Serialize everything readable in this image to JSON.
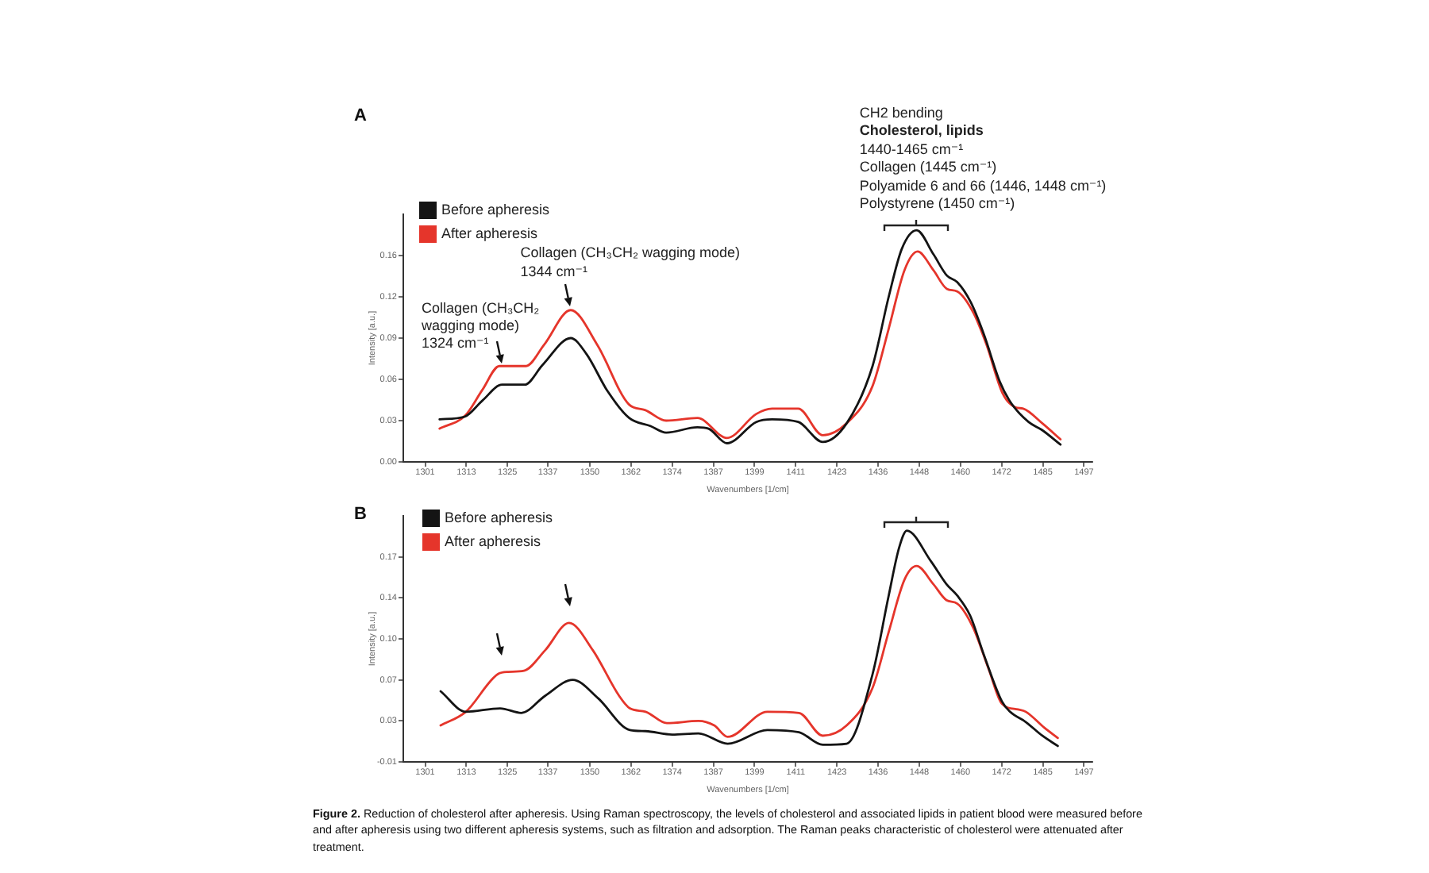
{
  "chart_data": [
    {
      "type": "line",
      "title": "A",
      "xlabel": "Wavenumbers [1/cm]",
      "ylabel": "Intensity [a.u.]",
      "xlim": [
        1294.5,
        1499.5
      ],
      "xticks": [
        1301,
        {
          "value": 1313.25,
          "label": "1313"
        },
        {
          "value": 1325.5,
          "label": "1325"
        },
        {
          "value": 1337.5,
          "label": "1337"
        },
        1350,
        {
          "value": 1362.25,
          "label": "1362"
        },
        {
          "value": 1374.5,
          "label": "1374"
        },
        {
          "value": 1386.75,
          "label": "1387"
        },
        1399,
        {
          "value": 1411.25,
          "label": "1411"
        },
        {
          "value": 1423.5,
          "label": "1423"
        },
        {
          "value": 1435.75,
          "label": "1436"
        },
        1448,
        {
          "value": 1460.25,
          "label": "1460"
        },
        {
          "value": 1472.5,
          "label": "1472"
        },
        {
          "value": 1484.75,
          "label": "1485"
        },
        1497
      ],
      "ylim": [
        0,
        0.186
      ],
      "yticks": [
        {
          "value": 0,
          "label": "0.00"
        },
        {
          "value": 0.031,
          "label": "0.03"
        },
        {
          "value": 0.062,
          "label": "0.06"
        },
        {
          "value": 0.093,
          "label": "0.09"
        },
        {
          "value": 0.124,
          "label": "0.12"
        },
        {
          "value": 0.155,
          "label": "0.16"
        }
      ],
      "grid": false,
      "legend": "top left",
      "marker": "none",
      "line_style": "solid",
      "series": [
        {
          "name": "Before apheresis",
          "color": "#141414",
          "x": [
            1305.3,
            1312.8,
            1318,
            1323.9,
            1330.6,
            1336,
            1344.3,
            1349,
            1355.3,
            1361.7,
            1368,
            1372.7,
            1382,
            1385.3,
            1390.8,
            1399.5,
            1404.2,
            1412,
            1419.3,
            1426.4,
            1434.1,
            1438.9,
            1442.8,
            1447.2,
            1452.2,
            1456.2,
            1459.3,
            1463.3,
            1467.2,
            1472,
            1475.1,
            1480.5,
            1484.5,
            1490
          ],
          "values": [
            0.032,
            0.034,
            0.046,
            0.058,
            0.058,
            0.073,
            0.093,
            0.081,
            0.053,
            0.033,
            0.027,
            0.022,
            0.026,
            0.025,
            0.014,
            0.03,
            0.032,
            0.03,
            0.015,
            0.029,
            0.072,
            0.124,
            0.16,
            0.174,
            0.156,
            0.14,
            0.135,
            0.12,
            0.096,
            0.06,
            0.045,
            0.03,
            0.024,
            0.013
          ]
        },
        {
          "name": "After apheresis",
          "color": "#e5352b",
          "x": [
            1305.3,
            1313,
            1318,
            1323.1,
            1331,
            1336.4,
            1344.3,
            1352.2,
            1361.7,
            1366.4,
            1372.7,
            1382,
            1390.8,
            1399.5,
            1404.2,
            1412,
            1419.3,
            1426.4,
            1434.1,
            1438.9,
            1443.6,
            1447.5,
            1452.2,
            1456.2,
            1459.3,
            1464.1,
            1468,
            1472.7,
            1476.6,
            1478.9,
            1484.6,
            1490
          ],
          "values": [
            0.025,
            0.035,
            0.054,
            0.072,
            0.072,
            0.088,
            0.114,
            0.088,
            0.043,
            0.039,
            0.031,
            0.033,
            0.018,
            0.036,
            0.04,
            0.04,
            0.02,
            0.029,
            0.057,
            0.1,
            0.144,
            0.158,
            0.144,
            0.13,
            0.128,
            0.112,
            0.088,
            0.052,
            0.041,
            0.04,
            0.029,
            0.017
          ]
        }
      ],
      "annotations": [
        {
          "text": "Collagen (CH₃CH₂\nwagging mode)\n1324 cm⁻¹",
          "x": 1324,
          "y": 0.072
        },
        {
          "text": "Collagen (CH₃CH₂ wagging mode)\n1344 cm⁻¹",
          "x": 1344,
          "y": 0.114
        },
        {
          "text": "CH2 bending\nCholesterol, lipids\n1440-1465 cm⁻¹\nCollagen (1445 cm⁻¹)\nPolyamide 6 and 66 (1446, 1448 cm⁻¹)\nPolystyrene (1450 cm⁻¹)",
          "x": 1447,
          "y": 0.174
        }
      ]
    },
    {
      "type": "line",
      "title": "B",
      "xlabel": "Wavenumbers [1/cm]",
      "ylabel": "Intensity [a.u.]",
      "xlim": [
        1294.5,
        1499.5
      ],
      "xticks": [
        1301,
        {
          "value": 1313.25,
          "label": "1313"
        },
        {
          "value": 1325.5,
          "label": "1325"
        },
        {
          "value": 1337.5,
          "label": "1337"
        },
        1350,
        {
          "value": 1362.25,
          "label": "1362"
        },
        {
          "value": 1374.5,
          "label": "1374"
        },
        {
          "value": 1386.75,
          "label": "1387"
        },
        1399,
        {
          "value": 1411.25,
          "label": "1411"
        },
        {
          "value": 1423.5,
          "label": "1423"
        },
        {
          "value": 1435.75,
          "label": "1436"
        },
        1448,
        {
          "value": 1460.25,
          "label": "1460"
        },
        {
          "value": 1472.5,
          "label": "1472"
        },
        {
          "value": 1484.75,
          "label": "1485"
        },
        1497
      ],
      "ylim": [
        -0.006,
        0.21
      ],
      "yticks": [
        {
          "value": -0.006,
          "label": "-0.01"
        },
        {
          "value": 0.03,
          "label": "0.03"
        },
        {
          "value": 0.066,
          "label": "0.07"
        },
        {
          "value": 0.102,
          "label": "0.10"
        },
        {
          "value": 0.138,
          "label": "0.14"
        },
        {
          "value": 0.174,
          "label": "0.17"
        }
      ],
      "grid": false,
      "legend": "top left",
      "marker": "none",
      "line_style": "solid",
      "series": [
        {
          "name": "Before apheresis",
          "color": "#141414",
          "x": [
            1305.6,
            1313.1,
            1323.3,
            1329.6,
            1336.7,
            1344.9,
            1352.4,
            1361.9,
            1366.6,
            1374.5,
            1382.3,
            1391,
            1402.8,
            1412.2,
            1419.3,
            1426.4,
            1434.1,
            1438.9,
            1442,
            1444.3,
            1451.5,
            1456.1,
            1459.3,
            1463.2,
            1467.1,
            1472.6,
            1475,
            1479.7,
            1484.6,
            1489.2
          ],
          "values": [
            0.056,
            0.038,
            0.041,
            0.037,
            0.052,
            0.066,
            0.05,
            0.022,
            0.021,
            0.018,
            0.019,
            0.01,
            0.022,
            0.02,
            0.009,
            0.01,
            0.071,
            0.14,
            0.182,
            0.197,
            0.17,
            0.15,
            0.14,
            0.122,
            0.089,
            0.047,
            0.038,
            0.029,
            0.017,
            0.008
          ]
        },
        {
          "name": "After apheresis",
          "color": "#e5352b",
          "x": [
            1305.6,
            1313.1,
            1322.6,
            1325.7,
            1330.4,
            1336.7,
            1343.8,
            1350.9,
            1358.7,
            1361.9,
            1366.6,
            1372.9,
            1382.3,
            1387,
            1391,
            1402.8,
            1412.2,
            1419.3,
            1426.4,
            1434.1,
            1438.9,
            1443.6,
            1447.2,
            1452.2,
            1456.1,
            1459.3,
            1464,
            1468.7,
            1472.6,
            1477.4,
            1479.7,
            1485.2,
            1489.2
          ],
          "values": [
            0.026,
            0.038,
            0.071,
            0.073,
            0.074,
            0.092,
            0.116,
            0.092,
            0.052,
            0.041,
            0.038,
            0.028,
            0.03,
            0.026,
            0.016,
            0.038,
            0.037,
            0.017,
            0.026,
            0.059,
            0.108,
            0.154,
            0.166,
            0.15,
            0.136,
            0.133,
            0.112,
            0.075,
            0.045,
            0.04,
            0.038,
            0.024,
            0.015
          ]
        }
      ],
      "annotations": [
        "Figure 2. Reduction of cholesterol after apheresis. Using Raman spectroscopy, the levels of cholesterol and associated lipids in patient blood were measured before and after apheresis using two different apheresis systems, such as filtration and adsorption. The Raman peaks characteristic of cholesterol were attenuated after treatment."
      ]
    }
  ]
}
